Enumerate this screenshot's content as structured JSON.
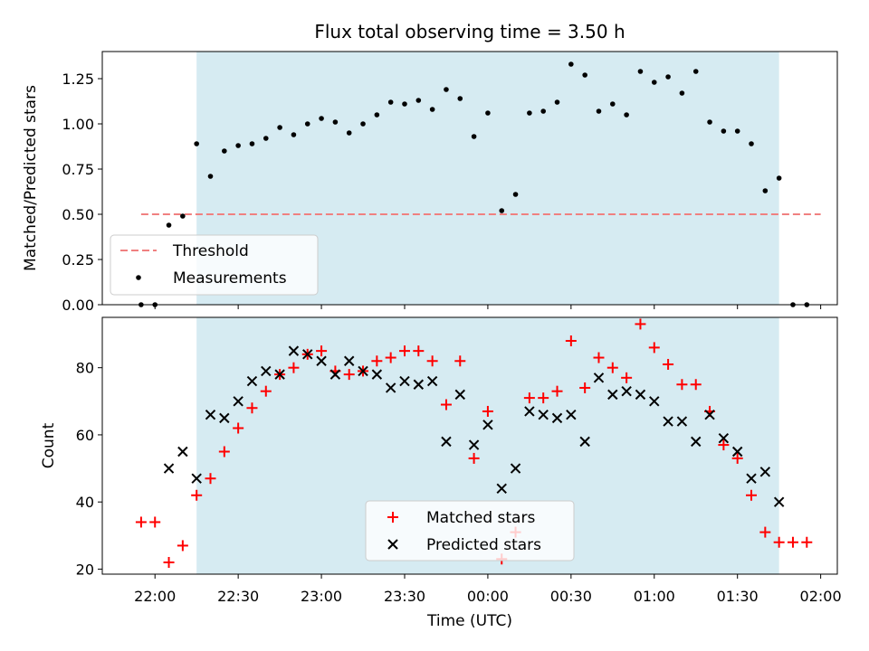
{
  "title": "Flux total observing time = 3.50 h",
  "xlabel": "Time (UTC)",
  "x_tick_labels": [
    "22:00",
    "22:30",
    "23:00",
    "23:30",
    "00:00",
    "00:30",
    "01:00",
    "01:30",
    "02:00"
  ],
  "colors": {
    "shade": "#add8e6",
    "threshold": "#f08080",
    "measurements": "#000000",
    "matched": "#ff0000",
    "predicted": "#000000"
  },
  "chart_data": [
    {
      "type": "scatter",
      "title": "Flux total observing time = 3.50 h",
      "ylabel": "Matched/Predicted stars",
      "xlim": [
        "21:41",
        "02:06"
      ],
      "ylim": [
        0,
        1.4
      ],
      "y_ticks": [
        "0.00",
        "0.25",
        "0.50",
        "0.75",
        "1.00",
        "1.25"
      ],
      "shaded_interval": [
        "22:15",
        "01:45"
      ],
      "legend_position": "lower-left",
      "threshold": {
        "name": "Threshold",
        "y": 0.5,
        "x_range": [
          "21:55",
          "02:00"
        ]
      },
      "series": [
        {
          "name": "Measurements",
          "points": [
            [
              "21:55",
              0.0
            ],
            [
              "22:00",
              0.0
            ],
            [
              "22:05",
              0.44
            ],
            [
              "22:10",
              0.49
            ],
            [
              "22:15",
              0.89
            ],
            [
              "22:20",
              0.71
            ],
            [
              "22:25",
              0.85
            ],
            [
              "22:30",
              0.88
            ],
            [
              "22:35",
              0.89
            ],
            [
              "22:40",
              0.92
            ],
            [
              "22:45",
              0.98
            ],
            [
              "22:50",
              0.94
            ],
            [
              "22:55",
              1.0
            ],
            [
              "23:00",
              1.03
            ],
            [
              "23:05",
              1.01
            ],
            [
              "23:10",
              0.95
            ],
            [
              "23:15",
              1.0
            ],
            [
              "23:20",
              1.05
            ],
            [
              "23:25",
              1.12
            ],
            [
              "23:30",
              1.11
            ],
            [
              "23:35",
              1.13
            ],
            [
              "23:40",
              1.08
            ],
            [
              "23:45",
              1.19
            ],
            [
              "23:50",
              1.14
            ],
            [
              "23:55",
              0.93
            ],
            [
              "00:00",
              1.06
            ],
            [
              "00:05",
              0.52
            ],
            [
              "00:10",
              0.61
            ],
            [
              "00:15",
              1.06
            ],
            [
              "00:20",
              1.07
            ],
            [
              "00:25",
              1.12
            ],
            [
              "00:30",
              1.33
            ],
            [
              "00:35",
              1.27
            ],
            [
              "00:40",
              1.07
            ],
            [
              "00:45",
              1.11
            ],
            [
              "00:50",
              1.05
            ],
            [
              "00:55",
              1.29
            ],
            [
              "01:00",
              1.23
            ],
            [
              "01:05",
              1.26
            ],
            [
              "01:10",
              1.17
            ],
            [
              "01:15",
              1.29
            ],
            [
              "01:20",
              1.01
            ],
            [
              "01:25",
              0.96
            ],
            [
              "01:30",
              0.96
            ],
            [
              "01:35",
              0.89
            ],
            [
              "01:40",
              0.63
            ],
            [
              "01:45",
              0.7
            ],
            [
              "01:50",
              0.0
            ],
            [
              "01:55",
              0.0
            ]
          ]
        }
      ]
    },
    {
      "type": "scatter",
      "ylabel": "Count",
      "xlabel": "Time (UTC)",
      "xlim": [
        "21:41",
        "02:06"
      ],
      "ylim": [
        18.5,
        95
      ],
      "y_ticks": [
        "20",
        "40",
        "60",
        "80"
      ],
      "shaded_interval": [
        "22:15",
        "01:45"
      ],
      "legend_position": "lower-center",
      "series": [
        {
          "name": "Matched stars",
          "points": [
            [
              "21:55",
              34
            ],
            [
              "22:00",
              34
            ],
            [
              "22:05",
              22
            ],
            [
              "22:10",
              27
            ],
            [
              "22:15",
              42
            ],
            [
              "22:20",
              47
            ],
            [
              "22:25",
              55
            ],
            [
              "22:30",
              62
            ],
            [
              "22:35",
              68
            ],
            [
              "22:40",
              73
            ],
            [
              "22:45",
              78
            ],
            [
              "22:50",
              80
            ],
            [
              "22:55",
              84
            ],
            [
              "23:00",
              85
            ],
            [
              "23:05",
              79
            ],
            [
              "23:10",
              78
            ],
            [
              "23:15",
              79
            ],
            [
              "23:20",
              82
            ],
            [
              "23:25",
              83
            ],
            [
              "23:30",
              85
            ],
            [
              "23:35",
              85
            ],
            [
              "23:40",
              82
            ],
            [
              "23:45",
              69
            ],
            [
              "23:50",
              82
            ],
            [
              "23:55",
              53
            ],
            [
              "00:00",
              67
            ],
            [
              "00:05",
              23
            ],
            [
              "00:10",
              31
            ],
            [
              "00:15",
              71
            ],
            [
              "00:20",
              71
            ],
            [
              "00:25",
              73
            ],
            [
              "00:30",
              88
            ],
            [
              "00:35",
              74
            ],
            [
              "00:40",
              83
            ],
            [
              "00:45",
              80
            ],
            [
              "00:50",
              77
            ],
            [
              "00:55",
              93
            ],
            [
              "01:00",
              86
            ],
            [
              "01:05",
              81
            ],
            [
              "01:10",
              75
            ],
            [
              "01:15",
              75
            ],
            [
              "01:20",
              67
            ],
            [
              "01:25",
              57
            ],
            [
              "01:30",
              53
            ],
            [
              "01:35",
              42
            ],
            [
              "01:40",
              31
            ],
            [
              "01:45",
              28
            ],
            [
              "01:50",
              28
            ],
            [
              "01:55",
              28
            ]
          ]
        },
        {
          "name": "Predicted stars",
          "points": [
            [
              "22:05",
              50
            ],
            [
              "22:10",
              55
            ],
            [
              "22:15",
              47
            ],
            [
              "22:20",
              66
            ],
            [
              "22:25",
              65
            ],
            [
              "22:30",
              70
            ],
            [
              "22:35",
              76
            ],
            [
              "22:40",
              79
            ],
            [
              "22:45",
              78
            ],
            [
              "22:50",
              85
            ],
            [
              "22:55",
              84
            ],
            [
              "23:00",
              82
            ],
            [
              "23:05",
              78
            ],
            [
              "23:10",
              82
            ],
            [
              "23:15",
              79
            ],
            [
              "23:20",
              78
            ],
            [
              "23:25",
              74
            ],
            [
              "23:30",
              76
            ],
            [
              "23:35",
              75
            ],
            [
              "23:40",
              76
            ],
            [
              "23:45",
              58
            ],
            [
              "23:50",
              72
            ],
            [
              "23:55",
              57
            ],
            [
              "00:00",
              63
            ],
            [
              "00:05",
              44
            ],
            [
              "00:10",
              50
            ],
            [
              "00:15",
              67
            ],
            [
              "00:20",
              66
            ],
            [
              "00:25",
              65
            ],
            [
              "00:30",
              66
            ],
            [
              "00:35",
              58
            ],
            [
              "00:40",
              77
            ],
            [
              "00:45",
              72
            ],
            [
              "00:50",
              73
            ],
            [
              "00:55",
              72
            ],
            [
              "01:00",
              70
            ],
            [
              "01:05",
              64
            ],
            [
              "01:10",
              64
            ],
            [
              "01:15",
              58
            ],
            [
              "01:20",
              66
            ],
            [
              "01:25",
              59
            ],
            [
              "01:30",
              55
            ],
            [
              "01:35",
              47
            ],
            [
              "01:40",
              49
            ],
            [
              "01:45",
              40
            ]
          ]
        }
      ]
    }
  ]
}
